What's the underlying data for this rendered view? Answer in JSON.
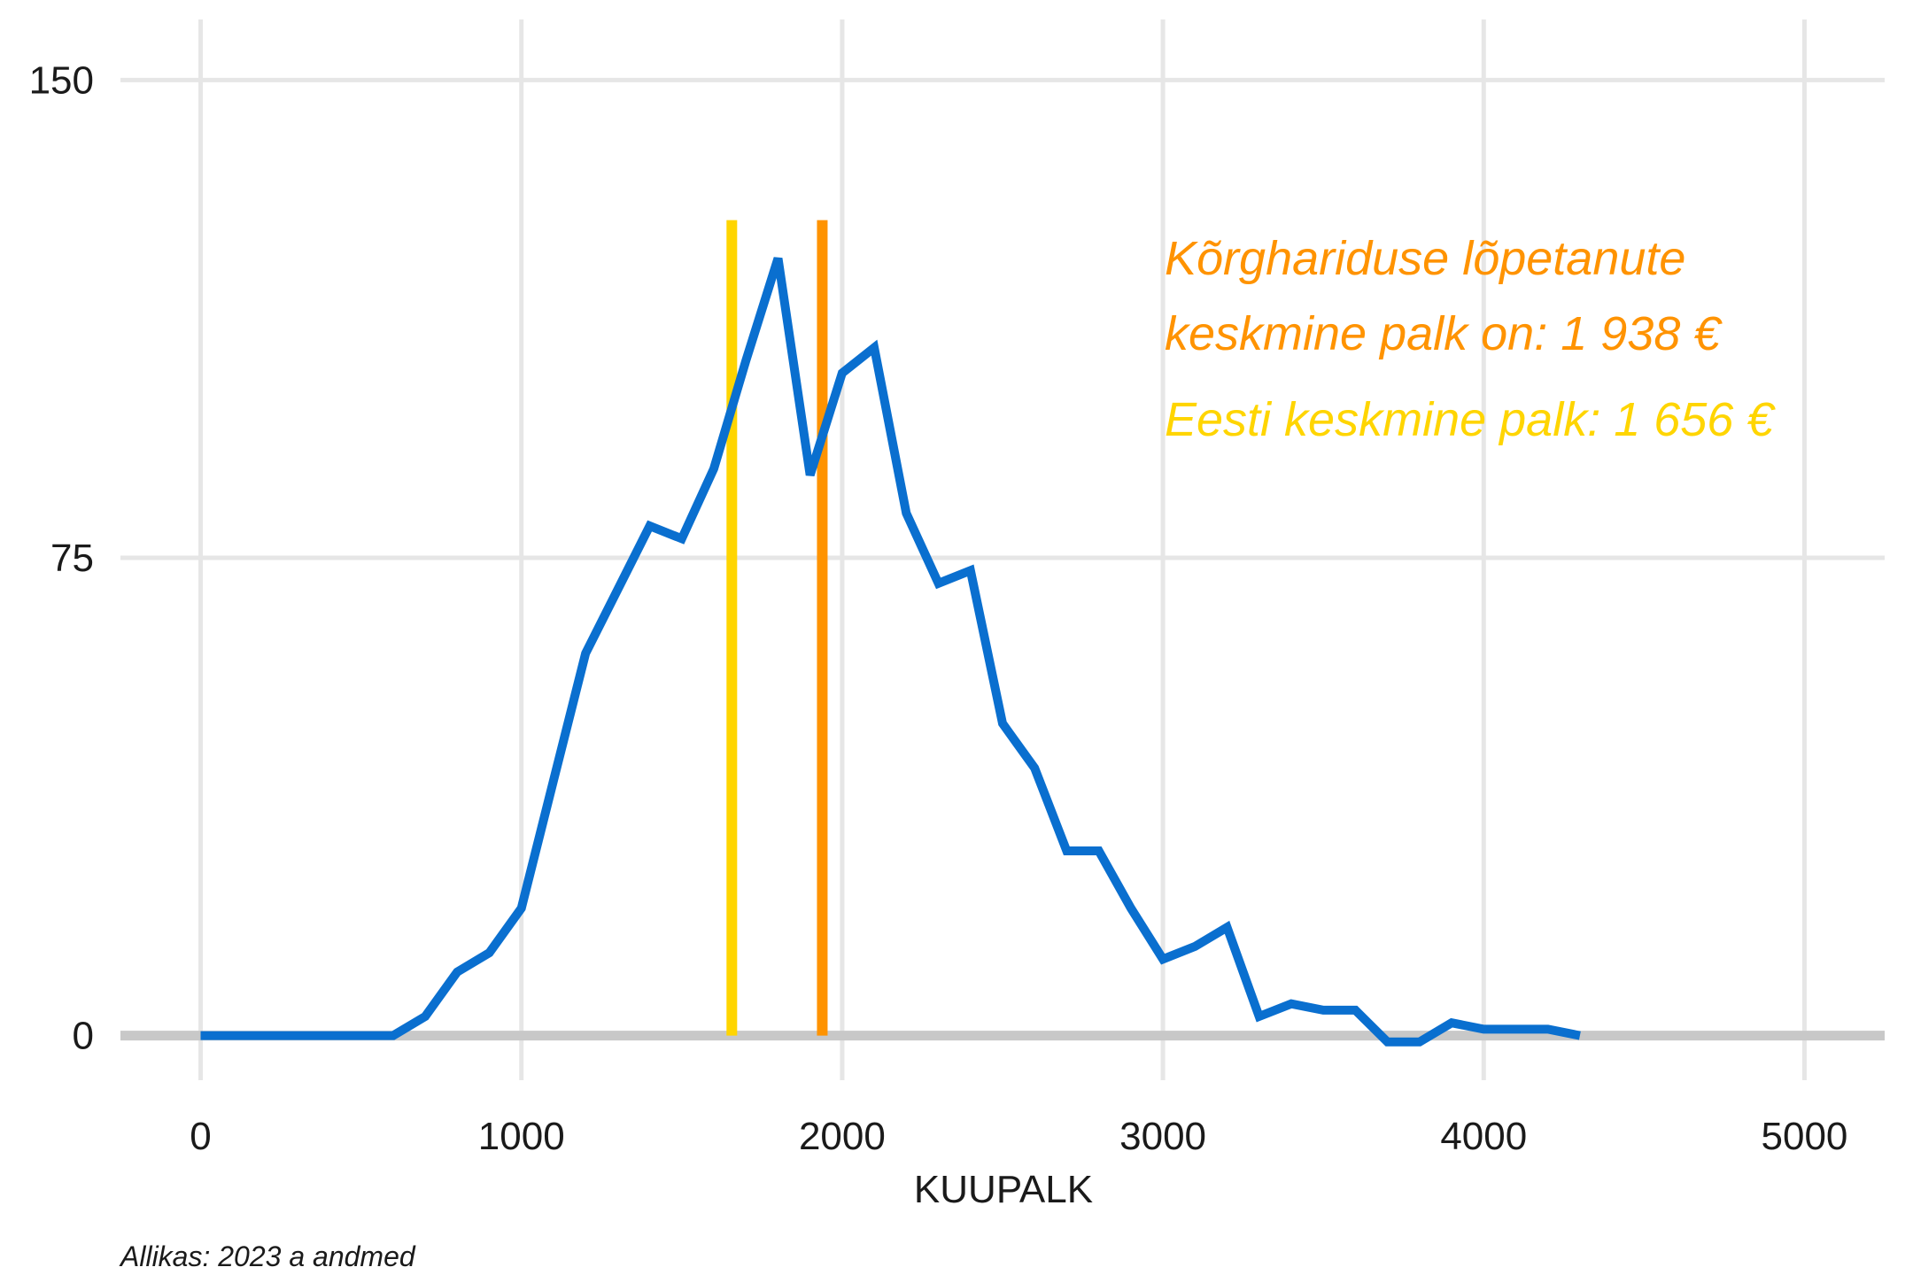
{
  "chart_data": {
    "type": "line",
    "xlabel": "KUUPALK",
    "ylabel": "",
    "xlim": [
      -250,
      5250
    ],
    "ylim": [
      -7,
      157
    ],
    "xticks": [
      0,
      1000,
      2000,
      3000,
      4000,
      5000
    ],
    "yticks": [
      0,
      75,
      150
    ],
    "grid": true,
    "caption": "Allikas: 2023 a andmed",
    "colors": {
      "line": "#0a6fcf",
      "grid": "#e6e6e6",
      "zero_line": "#c8c8c8",
      "vline_national": "#ffd500",
      "vline_higher_ed": "#ff9300"
    },
    "series": [
      {
        "x": [
          0,
          100,
          200,
          300,
          400,
          500,
          600,
          700,
          800,
          900,
          1000,
          1100,
          1200,
          1300,
          1400,
          1500,
          1600,
          1700,
          1800,
          1900,
          2000,
          2100,
          2200,
          2300,
          2400,
          2500,
          2600,
          2700,
          2800,
          2900,
          3000,
          3100,
          3200,
          3300,
          3400,
          3500,
          3600,
          3700,
          3800,
          3900,
          4000,
          4100,
          4200,
          4300
        ],
        "values": [
          0,
          0,
          0,
          0,
          0,
          0,
          0,
          3,
          10,
          13,
          20,
          40,
          60,
          70,
          80,
          78,
          89,
          106,
          122,
          88,
          104,
          108,
          82,
          71,
          73,
          49,
          42,
          29,
          29,
          20,
          12,
          14,
          17,
          3,
          5,
          4,
          4,
          -1,
          -1,
          2,
          1,
          1,
          1,
          0
        ]
      }
    ],
    "vlines": [
      {
        "x": 1656,
        "color": "#ffd500",
        "ymax": 128
      },
      {
        "x": 1938,
        "color": "#ff9300",
        "ymax": 128
      }
    ],
    "annotations": [
      {
        "text": "Kõrghariduse lõpetanute",
        "color": "#ff9300"
      },
      {
        "text": " keskmine palk on: 1 938 €",
        "color": "#ff9300"
      },
      {
        "text": "Eesti keskmine palk: 1 656 €",
        "color": "#ffd500"
      }
    ]
  }
}
